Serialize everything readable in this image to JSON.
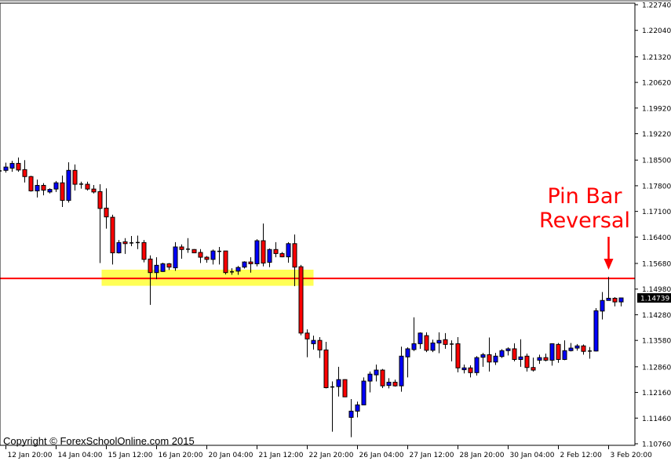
{
  "chart_data": {
    "type": "candlestick",
    "title": "",
    "ylim": [
      1.1076,
      1.2274
    ],
    "y_ticks": [
      "1.22740",
      "1.22040",
      "1.21320",
      "1.20620",
      "1.19920",
      "1.19220",
      "1.18500",
      "1.17800",
      "1.17100",
      "1.16400",
      "1.15680",
      "1.14980",
      "1.14280",
      "1.13580",
      "1.12860",
      "1.12160",
      "1.11460",
      "1.10760"
    ],
    "x_ticks": [
      {
        "candle": 1,
        "label": "12 Jan 20:00"
      },
      {
        "candle": 9,
        "label": "14 Jan 04:00"
      },
      {
        "candle": 17,
        "label": "15 Jan 12:00"
      },
      {
        "candle": 25,
        "label": "16 Jan 20:00"
      },
      {
        "candle": 33,
        "label": "20 Jan 04:00"
      },
      {
        "candle": 41,
        "label": "21 Jan 12:00"
      },
      {
        "candle": 49,
        "label": "22 Jan 20:00"
      },
      {
        "candle": 57,
        "label": "26 Jan 04:00"
      },
      {
        "candle": 65,
        "label": "27 Jan 12:00"
      },
      {
        "candle": 73,
        "label": "28 Jan 20:00"
      },
      {
        "candle": 81,
        "label": "30 Jan 04:00"
      },
      {
        "candle": 89,
        "label": "2 Feb 12:00"
      },
      {
        "candle": 97,
        "label": "3 Feb 20:00"
      }
    ],
    "candle_fields": [
      "open",
      "high",
      "low",
      "close"
    ],
    "candles": [
      [
        1.182,
        1.1823,
        1.1818,
        1.1821
      ],
      [
        1.1822,
        1.1843,
        1.1816,
        1.1831
      ],
      [
        1.1828,
        1.1848,
        1.1818,
        1.1841
      ],
      [
        1.1841,
        1.1857,
        1.1818,
        1.1823
      ],
      [
        1.1824,
        1.185,
        1.1789,
        1.1805
      ],
      [
        1.1805,
        1.1807,
        1.1764,
        1.1766
      ],
      [
        1.1766,
        1.1797,
        1.1748,
        1.1781
      ],
      [
        1.1781,
        1.1787,
        1.1754,
        1.1768
      ],
      [
        1.1763,
        1.1773,
        1.1759,
        1.177
      ],
      [
        1.1771,
        1.1793,
        1.1763,
        1.1788
      ],
      [
        1.1788,
        1.1808,
        1.1722,
        1.174
      ],
      [
        1.174,
        1.1844,
        1.1734,
        1.1822
      ],
      [
        1.1822,
        1.1838,
        1.1767,
        1.1784
      ],
      [
        1.1784,
        1.1791,
        1.1772,
        1.1785
      ],
      [
        1.1784,
        1.1791,
        1.1767,
        1.1771
      ],
      [
        1.1771,
        1.1782,
        1.1759,
        1.1763
      ],
      [
        1.1764,
        1.1784,
        1.1569,
        1.1718
      ],
      [
        1.1719,
        1.1773,
        1.1663,
        1.1695
      ],
      [
        1.1694,
        1.1701,
        1.1565,
        1.1597
      ],
      [
        1.1597,
        1.1632,
        1.1595,
        1.1625
      ],
      [
        1.1627,
        1.1637,
        1.1594,
        1.1622
      ],
      [
        1.1624,
        1.1643,
        1.1615,
        1.1624
      ],
      [
        1.1625,
        1.1644,
        1.1607,
        1.1625
      ],
      [
        1.1625,
        1.1632,
        1.1571,
        1.1579
      ],
      [
        1.158,
        1.159,
        1.1455,
        1.1543
      ],
      [
        1.1543,
        1.1585,
        1.1525,
        1.1563
      ],
      [
        1.1546,
        1.157,
        1.1545,
        1.1567
      ],
      [
        1.1567,
        1.1569,
        1.155,
        1.1558
      ],
      [
        1.1556,
        1.1626,
        1.1548,
        1.1613
      ],
      [
        1.1613,
        1.162,
        1.1581,
        1.1606
      ],
      [
        1.1607,
        1.1637,
        1.1597,
        1.1607
      ],
      [
        1.1606,
        1.1607,
        1.1597,
        1.1597
      ],
      [
        1.1598,
        1.1607,
        1.1569,
        1.1585
      ],
      [
        1.1585,
        1.1588,
        1.157,
        1.1579
      ],
      [
        1.1579,
        1.1606,
        1.1565,
        1.1602
      ],
      [
        1.1601,
        1.1613,
        1.1565,
        1.1601
      ],
      [
        1.1602,
        1.1602,
        1.1538,
        1.1543
      ],
      [
        1.1545,
        1.1555,
        1.1537,
        1.1545
      ],
      [
        1.1547,
        1.1561,
        1.1537,
        1.1557
      ],
      [
        1.1558,
        1.1574,
        1.1554,
        1.1572
      ],
      [
        1.1572,
        1.1585,
        1.1543,
        1.1567
      ],
      [
        1.1567,
        1.1634,
        1.156,
        1.163
      ],
      [
        1.163,
        1.1677,
        1.156,
        1.1569
      ],
      [
        1.1571,
        1.1609,
        1.1558,
        1.1606
      ],
      [
        1.1606,
        1.1626,
        1.1585,
        1.1595
      ],
      [
        1.1595,
        1.1599,
        1.1585,
        1.1586
      ],
      [
        1.1586,
        1.1626,
        1.157,
        1.1622
      ],
      [
        1.1622,
        1.1647,
        1.1506,
        1.1558
      ],
      [
        1.1559,
        1.1564,
        1.1372,
        1.1378
      ],
      [
        1.1378,
        1.1388,
        1.1312,
        1.1362
      ],
      [
        1.1349,
        1.1371,
        1.1333,
        1.1358
      ],
      [
        1.1358,
        1.1367,
        1.131,
        1.1332
      ],
      [
        1.1332,
        1.1354,
        1.1227,
        1.1229
      ],
      [
        1.1231,
        1.1246,
        1.1109,
        1.1231
      ],
      [
        1.1232,
        1.1286,
        1.1205,
        1.1251
      ],
      [
        1.1251,
        1.1252,
        1.1204,
        1.1204
      ],
      [
        1.1148,
        1.1198,
        1.1094,
        1.1165
      ],
      [
        1.1165,
        1.1191,
        1.1148,
        1.1182
      ],
      [
        1.1182,
        1.1257,
        1.1182,
        1.1247
      ],
      [
        1.1247,
        1.1273,
        1.1216,
        1.1266
      ],
      [
        1.1264,
        1.1292,
        1.1246,
        1.1277
      ],
      [
        1.1277,
        1.128,
        1.1228,
        1.1234
      ],
      [
        1.1235,
        1.1255,
        1.1227,
        1.1244
      ],
      [
        1.1244,
        1.1251,
        1.1232,
        1.1234
      ],
      [
        1.1234,
        1.1341,
        1.1218,
        1.1315
      ],
      [
        1.1313,
        1.1339,
        1.1257,
        1.1335
      ],
      [
        1.1333,
        1.1421,
        1.1329,
        1.1349
      ],
      [
        1.1349,
        1.138,
        1.1335,
        1.1378
      ],
      [
        1.1371,
        1.138,
        1.1326,
        1.1331
      ],
      [
        1.1331,
        1.136,
        1.1326,
        1.1351
      ],
      [
        1.1351,
        1.138,
        1.1323,
        1.1358
      ],
      [
        1.136,
        1.1378,
        1.1335,
        1.1347
      ],
      [
        1.1348,
        1.1358,
        1.1301,
        1.1348
      ],
      [
        1.1349,
        1.1367,
        1.1271,
        1.1283
      ],
      [
        1.1278,
        1.1292,
        1.1268,
        1.1283
      ],
      [
        1.1283,
        1.129,
        1.1257,
        1.127
      ],
      [
        1.127,
        1.1315,
        1.1262,
        1.1311
      ],
      [
        1.1312,
        1.1324,
        1.1286,
        1.1319
      ],
      [
        1.1319,
        1.1366,
        1.1273,
        1.1299
      ],
      [
        1.1299,
        1.1324,
        1.1291,
        1.1315
      ],
      [
        1.1314,
        1.1334,
        1.131,
        1.133
      ],
      [
        1.133,
        1.1339,
        1.1317,
        1.1335
      ],
      [
        1.1335,
        1.135,
        1.1301,
        1.1306
      ],
      [
        1.1306,
        1.1361,
        1.1286,
        1.1313
      ],
      [
        1.1315,
        1.1322,
        1.1273,
        1.1284
      ],
      [
        1.1284,
        1.1311,
        1.1273,
        1.1277
      ],
      [
        1.1304,
        1.1319,
        1.1294,
        1.1311
      ],
      [
        1.1311,
        1.1322,
        1.1301,
        1.1304
      ],
      [
        1.1304,
        1.1349,
        1.1289,
        1.1349
      ],
      [
        1.1347,
        1.1351,
        1.1297,
        1.1306
      ],
      [
        1.1306,
        1.1358,
        1.1304,
        1.133
      ],
      [
        1.133,
        1.1351,
        1.1328,
        1.1337
      ],
      [
        1.1337,
        1.1348,
        1.133,
        1.1343
      ],
      [
        1.1343,
        1.1347,
        1.1319,
        1.1328
      ],
      [
        1.1329,
        1.134,
        1.1308,
        1.1329
      ],
      [
        1.1329,
        1.1446,
        1.1328,
        1.1439
      ],
      [
        1.1438,
        1.149,
        1.1415,
        1.1467
      ],
      [
        1.1467,
        1.1531,
        1.1467,
        1.1473
      ],
      [
        1.1473,
        1.1476,
        1.1451,
        1.1463
      ],
      [
        1.1463,
        1.1474,
        1.1451,
        1.14739
      ]
    ],
    "current_price": "1.14739",
    "resistance_line": {
      "price": 1.1527,
      "color": "#ff0000"
    },
    "highlight_zone": {
      "price_low": 1.1507,
      "price_high": 1.1551,
      "from_candle": 16,
      "to_candle": 49,
      "color": "#ffff55"
    },
    "annotation": {
      "lines": [
        "Pin Bar",
        "Reversal"
      ],
      "target_candle": 97,
      "color": "#ff0000"
    },
    "colors": {
      "bull": "#0000ff",
      "bear": "#ff0000",
      "outline": "#000000",
      "background": "#ffffff"
    }
  },
  "footer": {
    "copyright": "Copyright © ForexSchoolOnline.com 2015"
  }
}
